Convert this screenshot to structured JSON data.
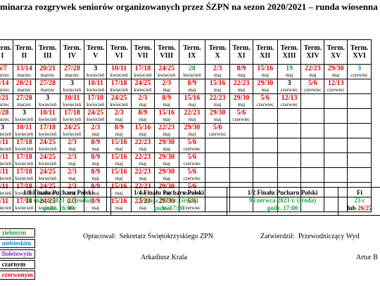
{
  "title": "minarza rozgrywek seniorów organizowanych przez ŚZPN na sezon 2020/2021 – runda wiosenna",
  "term_prefix": "Term.",
  "terms": [
    "I",
    "II",
    "III",
    "IV",
    "V",
    "VI",
    "VII",
    "VIII",
    "IX",
    "X",
    "XI",
    "XII",
    "XIII",
    "XIV",
    "XV",
    "XVI"
  ],
  "rows": [
    [
      [
        {
          "t": "6/7",
          "c": "r"
        },
        {
          "t": "marzec"
        }
      ],
      [
        {
          "t": "13/14",
          "c": "r"
        },
        {
          "t": "marzec"
        }
      ],
      [
        {
          "t": "20/21",
          "c": "r"
        },
        {
          "t": "marzec"
        }
      ],
      [
        {
          "t": "27/28",
          "c": "r"
        },
        {
          "t": "marzec"
        }
      ],
      [
        {
          "t": "3"
        },
        {
          "t": "kwiecień"
        }
      ],
      [
        {
          "t": "10/11",
          "c": "r"
        },
        {
          "t": "kwiecień"
        }
      ],
      [
        {
          "t": "17/18",
          "c": "r"
        },
        {
          "t": "kwiecień"
        }
      ],
      [
        {
          "t": "24/25",
          "c": "r"
        },
        {
          "t": "kwiecień"
        }
      ],
      [
        {
          "t": "28",
          "c": "g"
        },
        {
          "t": "kwiecień"
        }
      ],
      [
        {
          "t": "2/3",
          "c": "r"
        },
        {
          "t": "maj"
        }
      ],
      [
        {
          "t": "8/9",
          "c": "r"
        },
        {
          "t": "maj"
        }
      ],
      [
        {
          "t": "15/16",
          "c": "r"
        },
        {
          "t": "maj"
        }
      ],
      [
        {
          "t": "19",
          "c": "g"
        },
        {
          "t": "maj"
        }
      ],
      [
        {
          "t": "22/23",
          "c": "r"
        },
        {
          "t": "maj"
        }
      ],
      [
        {
          "t": "29/30",
          "c": "r"
        },
        {
          "t": "maj"
        }
      ],
      [
        {
          "t": "3",
          "c": "b"
        },
        {
          "t": "czerwiec"
        }
      ]
    ],
    [
      [
        {
          "t": "3/14",
          "c": "r"
        },
        {
          "t": "marzec"
        }
      ],
      [
        {
          "t": "20/21",
          "c": "r"
        },
        {
          "t": "marzec"
        }
      ],
      [
        {
          "t": "27/28",
          "c": "r"
        },
        {
          "t": "marzec"
        }
      ],
      [
        {
          "t": "3"
        },
        {
          "t": "kwiecień"
        }
      ],
      [
        {
          "t": "10/11",
          "c": "r"
        },
        {
          "t": "kwiecień"
        }
      ],
      [
        {
          "t": "17/18",
          "c": "r"
        },
        {
          "t": "kwiecień"
        }
      ],
      [
        {
          "t": "24/25",
          "c": "r"
        },
        {
          "t": "kwiecień"
        }
      ],
      [
        {
          "t": "2/3",
          "c": "r"
        },
        {
          "t": "maj"
        }
      ],
      [
        {
          "t": "8/9",
          "c": "r"
        },
        {
          "t": "maj"
        }
      ],
      [
        {
          "t": "15/16",
          "c": "r"
        },
        {
          "t": "maj"
        }
      ],
      [
        {
          "t": "22/23",
          "c": "r"
        },
        {
          "t": "maj"
        }
      ],
      [
        {
          "t": "29/30",
          "c": "r"
        },
        {
          "t": "maj"
        }
      ],
      [
        {
          "t": "3"
        },
        {
          "t": "czerwiec"
        }
      ],
      [
        {
          "t": "5/6",
          "c": "r"
        },
        {
          "t": "czerwiec"
        }
      ],
      [
        {
          "t": "12/13",
          "c": "r"
        },
        {
          "t": "czerwiec"
        }
      ],
      []
    ],
    [
      [
        {
          "t": "0/21",
          "c": "r"
        },
        {
          "t": "marzec"
        }
      ],
      [
        {
          "t": "27/28",
          "c": "r"
        },
        {
          "t": "marzec"
        }
      ],
      [
        {
          "t": "3"
        },
        {
          "t": "kwiecień"
        }
      ],
      [
        {
          "t": "10/11",
          "c": "r"
        },
        {
          "t": "kwiecień"
        }
      ],
      [
        {
          "t": "17/18",
          "c": "r"
        },
        {
          "t": "kwiecień"
        }
      ],
      [
        {
          "t": "24/25",
          "c": "r"
        },
        {
          "t": "kwiecień"
        }
      ],
      [
        {
          "t": "2/3",
          "c": "r"
        },
        {
          "t": "maj"
        }
      ],
      [
        {
          "t": "8/9",
          "c": "r"
        },
        {
          "t": "maj"
        }
      ],
      [
        {
          "t": "15/16",
          "c": "r"
        },
        {
          "t": "maj"
        }
      ],
      [
        {
          "t": "22/23",
          "c": "r"
        },
        {
          "t": "maj"
        }
      ],
      [
        {
          "t": "29/30",
          "c": "r"
        },
        {
          "t": "maj"
        }
      ],
      [
        {
          "t": "5/6",
          "c": "r"
        },
        {
          "t": "czerwiec"
        }
      ],
      [
        {
          "t": "12/13",
          "c": "r"
        },
        {
          "t": "czerwiec"
        }
      ],
      [],
      [],
      []
    ],
    [
      [
        {
          "t": "7/28",
          "c": "r"
        },
        {
          "t": "marzec"
        }
      ],
      [
        {
          "t": "3"
        },
        {
          "t": "kwiecień"
        }
      ],
      [
        {
          "t": "10/11",
          "c": "r"
        },
        {
          "t": "kwiecień"
        }
      ],
      [
        {
          "t": "17/18",
          "c": "r"
        },
        {
          "t": "kwiecień"
        }
      ],
      [
        {
          "t": "24/25",
          "c": "r"
        },
        {
          "t": "kwiecień"
        }
      ],
      [
        {
          "t": "2/3",
          "c": "r"
        },
        {
          "t": "maj"
        }
      ],
      [
        {
          "t": "8/9",
          "c": "r"
        },
        {
          "t": "maj"
        }
      ],
      [
        {
          "t": "15/16",
          "c": "r"
        },
        {
          "t": "maj"
        }
      ],
      [
        {
          "t": "22/23",
          "c": "r"
        },
        {
          "t": "maj"
        }
      ],
      [
        {
          "t": "29/30",
          "c": "r"
        },
        {
          "t": "maj"
        }
      ],
      [
        {
          "t": "5/6",
          "c": "r"
        },
        {
          "t": "czerwiec"
        }
      ],
      [],
      [],
      [],
      [],
      []
    ],
    [
      [
        {
          "t": "3"
        },
        {
          "t": "kwiecień"
        }
      ],
      [
        {
          "t": "10/11",
          "c": "r"
        },
        {
          "t": "kwiecień"
        }
      ],
      [
        {
          "t": "17/18",
          "c": "r"
        },
        {
          "t": "kwiecień"
        }
      ],
      [
        {
          "t": "24/25",
          "c": "r"
        },
        {
          "t": "kwiecień"
        }
      ],
      [
        {
          "t": "2/3",
          "c": "r"
        },
        {
          "t": "maj"
        }
      ],
      [
        {
          "t": "8/9",
          "c": "r"
        },
        {
          "t": "maj"
        }
      ],
      [
        {
          "t": "15/16",
          "c": "r"
        },
        {
          "t": "maj"
        }
      ],
      [
        {
          "t": "22/23",
          "c": "r"
        },
        {
          "t": "maj"
        }
      ],
      [
        {
          "t": "29/30",
          "c": "r"
        },
        {
          "t": "maj"
        }
      ],
      [
        {
          "t": "5/6",
          "c": "r"
        },
        {
          "t": "czerwiec"
        }
      ],
      [],
      [],
      [],
      [],
      [],
      []
    ],
    [
      [
        {
          "t": "0/11",
          "c": "r"
        },
        {
          "t": "kwiecień"
        }
      ],
      [
        {
          "t": "17/18",
          "c": "r"
        },
        {
          "t": "kwiecień"
        }
      ],
      [
        {
          "t": "24/25",
          "c": "r"
        },
        {
          "t": "kwiecień"
        }
      ],
      [
        {
          "t": "2/3",
          "c": "r"
        },
        {
          "t": "maj"
        }
      ],
      [
        {
          "t": "8/9",
          "c": "r"
        },
        {
          "t": "maj"
        }
      ],
      [
        {
          "t": "15/16",
          "c": "r"
        },
        {
          "t": "maj"
        }
      ],
      [
        {
          "t": "22/23",
          "c": "r"
        },
        {
          "t": "maj"
        }
      ],
      [
        {
          "t": "29/30",
          "c": "r"
        },
        {
          "t": "maj"
        }
      ],
      [
        {
          "t": "5/6",
          "c": "r"
        },
        {
          "t": "czerwiec"
        }
      ],
      [],
      [],
      [],
      [],
      [],
      [],
      []
    ],
    [
      [
        {
          "t": "0/11",
          "c": "r"
        },
        {
          "t": "kwiecień"
        }
      ],
      [
        {
          "t": "17/18",
          "c": "r"
        },
        {
          "t": "kwiecień"
        }
      ],
      [
        {
          "t": "24/25",
          "c": "r"
        },
        {
          "t": "kwiecień"
        }
      ],
      [
        {
          "t": "2/3",
          "c": "r"
        },
        {
          "t": "maj"
        }
      ],
      [
        {
          "t": "8/9",
          "c": "r"
        },
        {
          "t": "maj"
        }
      ],
      [
        {
          "t": "15/16",
          "c": "r"
        },
        {
          "t": "maj"
        }
      ],
      [
        {
          "t": "22/23",
          "c": "r"
        },
        {
          "t": "maj"
        }
      ],
      [
        {
          "t": "29/30",
          "c": "r"
        },
        {
          "t": "maj"
        }
      ],
      [
        {
          "t": "5/6",
          "c": "r"
        },
        {
          "t": "czerwiec"
        }
      ],
      [],
      [],
      [],
      [],
      [],
      [],
      []
    ],
    [
      [
        {
          "t": "0/11",
          "c": "r"
        },
        {
          "t": "kwiecień"
        }
      ],
      [
        {
          "t": "17/18",
          "c": "r"
        },
        {
          "t": "kwiecień"
        }
      ],
      [
        {
          "t": "24/25",
          "c": "r"
        },
        {
          "t": "kwiecień"
        }
      ],
      [
        {
          "t": "2/3",
          "c": "r"
        },
        {
          "t": "maj"
        }
      ],
      [
        {
          "t": "8/9",
          "c": "r"
        },
        {
          "t": "maj"
        }
      ],
      [
        {
          "t": "15/16",
          "c": "r"
        },
        {
          "t": "maj"
        }
      ],
      [
        {
          "t": "22/23",
          "c": "r"
        },
        {
          "t": "maj"
        }
      ],
      [
        {
          "t": "29/30",
          "c": "r"
        },
        {
          "t": "maj"
        }
      ],
      [
        {
          "t": "5/6",
          "c": "r"
        },
        {
          "t": "czerwiec"
        }
      ],
      [],
      [],
      [],
      [],
      [],
      [],
      []
    ],
    [
      [
        {
          "t": "0/11",
          "c": "r"
        },
        {
          "t": "kwiecień"
        }
      ],
      [
        {
          "t": "17/18",
          "c": "r"
        },
        {
          "t": "kwiecień"
        }
      ],
      [
        {
          "t": "24/25",
          "c": "r"
        },
        {
          "t": "kwiecień"
        }
      ],
      [
        {
          "t": "2/3",
          "c": "r"
        },
        {
          "t": "maj"
        }
      ],
      [
        {
          "t": "8/9",
          "c": "r"
        },
        {
          "t": "maj"
        }
      ],
      [
        {
          "t": "15/16",
          "c": "r"
        },
        {
          "t": "maj"
        }
      ],
      [
        {
          "t": "22/23",
          "c": "r"
        },
        {
          "t": "maj"
        }
      ],
      [
        {
          "t": "29/30",
          "c": "r"
        },
        {
          "t": "maj"
        }
      ],
      [
        {
          "t": "5/6",
          "c": "r"
        },
        {
          "t": "czerwiec"
        }
      ],
      [],
      [],
      [],
      [],
      [],
      [],
      []
    ],
    [
      [
        {
          "t": "0/11",
          "c": "r"
        },
        {
          "t": "kwiecień"
        }
      ],
      [
        {
          "t": "17/18",
          "c": "r"
        },
        {
          "t": "kwiecień"
        }
      ],
      [
        {
          "t": "24/25",
          "c": "r"
        },
        {
          "t": "kwiecień"
        }
      ],
      [
        {
          "t": "2/3",
          "c": "r"
        },
        {
          "t": "maj"
        }
      ],
      [
        {
          "t": "8/9",
          "c": "r"
        },
        {
          "t": "maj"
        }
      ],
      [
        {
          "t": "15/16",
          "c": "r"
        },
        {
          "t": "maj"
        }
      ],
      [
        {
          "t": "22/23",
          "c": "r"
        },
        {
          "t": "maj"
        }
      ],
      [
        {
          "t": "29/30",
          "c": "r"
        },
        {
          "t": "maj"
        }
      ],
      [
        {
          "t": "5/6",
          "c": "r"
        },
        {
          "t": "czerwiec"
        }
      ],
      [],
      [],
      [],
      [],
      [],
      [],
      []
    ]
  ],
  "cup": [
    {
      "title": "1/8 Finału Pucharu Polski",
      "date": "31 marca 2021 r. (środa)",
      "time": "godz. 16:00"
    },
    {
      "title": "1/4 Finału Pucharu Polski",
      "date": "5 maja 2021 r. (środa)",
      "time": "godz. 17:00"
    },
    {
      "title": "1/2 Finału Pucharu Polski",
      "date": "9 czerwca 2021 r. (środa)",
      "time": "godz. 17:00"
    },
    {
      "title": "Fi",
      "date": "23 c",
      "alt_prefix": "lub ",
      "alt_date": "26/27"
    }
  ],
  "legend": [
    {
      "label": "m zielonym",
      "color": "#1aa33a"
    },
    {
      "label": "m niebieskim",
      "color": "#1580d8"
    },
    {
      "label": "m fioletowym",
      "color": "#7a2fb8"
    },
    {
      "label": "m czarnym",
      "color": "#000000"
    },
    {
      "label": "m czerwonym",
      "color": "#e00000"
    }
  ],
  "footer": {
    "prepared_label": "Opracował:",
    "prepared_role": "Sekretarz Świętokrzyskiego ZPN",
    "prepared_name": "Arkadiusz Krala",
    "approved_label": "Zatwierdził:",
    "approved_role": "Przewodniczący Wyd",
    "approved_name": "Artur B"
  }
}
